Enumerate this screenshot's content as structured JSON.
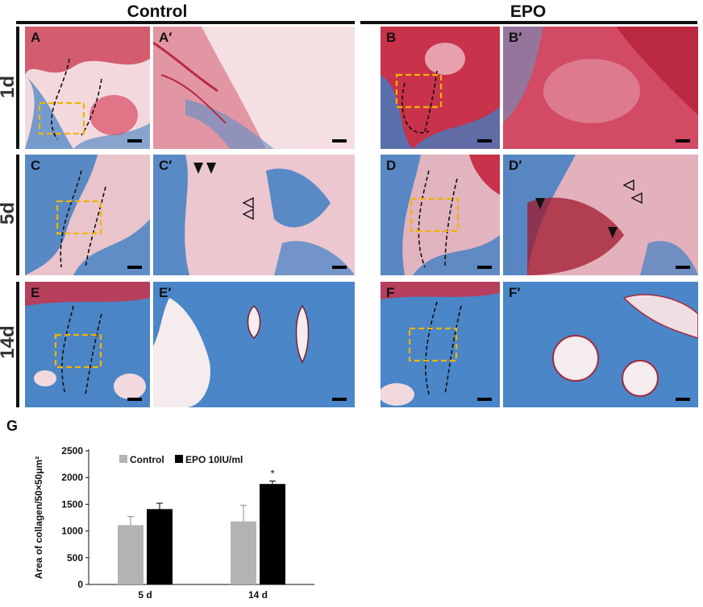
{
  "groups": {
    "control": "Control",
    "epo": "EPO"
  },
  "rows": [
    "1d",
    "5d",
    "14d"
  ],
  "panels": {
    "A": "A",
    "A2": "A′",
    "B": "B",
    "B2": "B′",
    "C": "C",
    "C2": "C′",
    "D": "D",
    "D2": "D′",
    "E": "E",
    "E2": "E′",
    "F": "F",
    "F2": "F′"
  },
  "inset_labels": {
    "A": "A′",
    "B": "B′",
    "C": "C′",
    "D": "D′",
    "E": "E′",
    "F": "F′"
  },
  "colors": {
    "stain_red": "#c8324a",
    "stain_pink": "#e8b4bc",
    "stain_blue": "#3f7fc4",
    "inset_box": "#f0b400",
    "bar_control": "#b3b3b3",
    "bar_epo": "#000000"
  },
  "chart_data": {
    "panel_label": "G",
    "type": "bar",
    "categories": [
      "5 d",
      "14 d"
    ],
    "series": [
      {
        "name": "Control",
        "values": [
          1110,
          1180
        ],
        "errors": [
          160,
          300
        ]
      },
      {
        "name": "EPO 10IU/ml",
        "values": [
          1410,
          1880
        ],
        "errors": [
          110,
          55
        ]
      }
    ],
    "ylabel": "Area of collagen/50×50μm²",
    "ylim": [
      0,
      2500
    ],
    "yticks": [
      0,
      500,
      1000,
      1500,
      2000,
      2500
    ],
    "significance": [
      {
        "category": "14 d",
        "series": "EPO 10IU/ml",
        "mark": "*"
      }
    ],
    "legend": "top"
  }
}
